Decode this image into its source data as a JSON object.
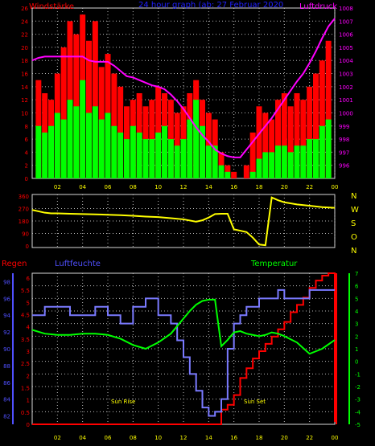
{
  "header": {
    "left_label": "Windstärke",
    "center_label": "24 hour graph (ab: 27 Februar 2020",
    "right_label": "Luftdruck"
  },
  "middle": {
    "compass_labels": [
      "N",
      "W",
      "S",
      "O",
      "N"
    ]
  },
  "bottom": {
    "left_label": "Regen",
    "humidity_label": "Luftfeuchte",
    "temp_label": "Temperatur",
    "sunrise_label": "Sun Rise",
    "sunset_label": "Sun Set"
  },
  "colors": {
    "wind_gust": "#ff0000",
    "wind_avg": "#00ff00",
    "pressure": "#ff00ff",
    "direction": "#ffff00",
    "humidity": "#7a7aff",
    "temperature": "#00ff00",
    "rain": "#ff0000",
    "axis_wind": "#ff0000",
    "axis_pressure": "#ff00ff",
    "axis_rain": "#ff0000",
    "axis_humidity": "#5050ff",
    "axis_temp": "#00ff00"
  },
  "chart_data": [
    {
      "type": "bar",
      "panel": "wind-pressure",
      "x_tick_labels": [
        "02",
        "04",
        "06",
        "08",
        "10",
        "12",
        "14",
        "16",
        "18",
        "20",
        "22",
        "00"
      ],
      "x_range_hours": [
        0,
        24
      ],
      "ylim_left": [
        0,
        26
      ],
      "left_tick_labels": [
        "0",
        "2",
        "4",
        "6",
        "8",
        "10",
        "12",
        "14",
        "16",
        "18",
        "20",
        "22",
        "24",
        "26"
      ],
      "ylim_right": [
        995,
        1008
      ],
      "right_tick_labels": [
        "996",
        "997",
        "998",
        "999",
        "1000",
        "1001",
        "1002",
        "1003",
        "1004",
        "1005",
        "1006",
        "1007",
        "1008"
      ],
      "grid": true,
      "series": [
        {
          "name": "Windstärke",
          "kind": "gust-bars",
          "x": [
            0.5,
            1,
            1.5,
            2,
            2.5,
            3,
            3.5,
            4,
            4.5,
            5,
            5.5,
            6,
            6.5,
            7,
            7.5,
            8,
            8.5,
            9,
            9.5,
            10,
            10.5,
            11,
            11.5,
            12,
            12.5,
            13,
            13.5,
            14,
            14.5,
            15,
            15.5,
            16,
            16.5,
            17,
            17.5,
            18,
            18.5,
            19,
            19.5,
            20,
            20.5,
            21,
            21.5,
            22,
            22.5,
            23,
            23.5
          ],
          "values": [
            15,
            13,
            12,
            16,
            20,
            24,
            22,
            25,
            21,
            24,
            17,
            19,
            16,
            14,
            11,
            12,
            13,
            11,
            12,
            14,
            13,
            12,
            10,
            11,
            13,
            15,
            12,
            10,
            9,
            4,
            2,
            1,
            0,
            2,
            7,
            11,
            10,
            9,
            12,
            13,
            11,
            13,
            12,
            14,
            16,
            18,
            21
          ]
        },
        {
          "name": "",
          "kind": "average-bars",
          "x": [
            0.5,
            1,
            1.5,
            2,
            2.5,
            3,
            3.5,
            4,
            4.5,
            5,
            5.5,
            6,
            6.5,
            7,
            7.5,
            8,
            8.5,
            9,
            9.5,
            10,
            10.5,
            11,
            11.5,
            12,
            12.5,
            13,
            13.5,
            14,
            14.5,
            15,
            15.5,
            16,
            16.5,
            17,
            17.5,
            18,
            18.5,
            19,
            19.5,
            20,
            20.5,
            21,
            21.5,
            22,
            22.5,
            23,
            23.5
          ],
          "values": [
            8,
            7,
            8,
            10,
            9,
            12,
            11,
            15,
            10,
            11,
            9,
            10,
            8,
            7,
            6,
            8,
            7,
            6,
            6,
            7,
            8,
            6,
            5,
            6,
            9,
            12,
            8,
            5,
            5,
            2,
            1,
            0,
            0,
            0,
            1,
            3,
            4,
            4,
            5,
            5,
            4,
            5,
            5,
            6,
            6,
            8,
            9
          ]
        },
        {
          "name": "Luftdruck",
          "kind": "line",
          "axis": "right",
          "x": [
            0,
            0.5,
            1,
            2,
            3,
            4,
            4.5,
            5,
            5.5,
            6,
            6.5,
            7,
            7.5,
            8,
            8.5,
            9,
            9.5,
            10,
            10.5,
            11,
            11.5,
            12,
            12.5,
            13,
            13.5,
            14,
            14.5,
            15,
            15.5,
            16,
            16.5,
            17,
            17.5,
            18,
            18.5,
            19,
            19.5,
            20,
            20.5,
            21,
            21.5,
            22,
            22.5,
            23,
            23.5,
            24
          ],
          "values": [
            1004.0,
            1004.2,
            1004.3,
            1004.3,
            1004.3,
            1004.3,
            1004.0,
            1003.9,
            1003.9,
            1003.9,
            1003.6,
            1003.2,
            1002.8,
            1002.7,
            1002.5,
            1002.3,
            1002.1,
            1002.0,
            1001.8,
            1001.4,
            1000.9,
            1000.3,
            999.6,
            998.9,
            998.3,
            997.8,
            997.2,
            996.9,
            996.7,
            996.6,
            996.6,
            997.2,
            997.8,
            998.4,
            999.0,
            999.6,
            1000.3,
            1001.0,
            1001.7,
            1002.4,
            1003.0,
            1003.8,
            1004.7,
            1005.7,
            1006.6,
            1007.2
          ]
        }
      ]
    },
    {
      "type": "line",
      "panel": "wind-direction",
      "x_range_hours": [
        0,
        24
      ],
      "ylim": [
        0,
        360
      ],
      "tick_labels": [
        "0",
        "90",
        "180",
        "270",
        "360"
      ],
      "grid": true,
      "series": [
        {
          "name": "",
          "x": [
            0,
            0.5,
            1,
            1.5,
            2,
            3,
            4,
            5,
            6,
            7,
            8,
            9,
            10,
            11,
            12,
            13,
            13.5,
            14,
            14.5,
            15,
            15.5,
            16,
            16.5,
            17,
            17.5,
            18,
            18.5,
            19,
            19.5,
            20,
            21,
            22,
            23,
            24
          ],
          "values": [
            260,
            250,
            240,
            235,
            235,
            232,
            230,
            228,
            225,
            222,
            218,
            212,
            208,
            200,
            192,
            175,
            185,
            205,
            230,
            232,
            232,
            120,
            110,
            100,
            60,
            10,
            5,
            350,
            330,
            315,
            300,
            290,
            280,
            275
          ]
        }
      ]
    },
    {
      "type": "line",
      "panel": "rain-humidity-temperature",
      "x_tick_labels": [
        "02",
        "04",
        "06",
        "08",
        "10",
        "12",
        "14",
        "16",
        "18",
        "20",
        "22",
        "00"
      ],
      "x_range_hours": [
        0,
        24
      ],
      "grid": true,
      "rain_ylim": [
        0,
        6.2
      ],
      "rain_tick_labels": [
        "0",
        "0.5",
        "1",
        "1.5",
        "2",
        "2.5",
        "3",
        "3.5",
        "4",
        "4.5",
        "5",
        "5.5",
        "6"
      ],
      "humidity_ylim": [
        81,
        99
      ],
      "humidity_tick_labels": [
        "82",
        "84",
        "86",
        "88",
        "90",
        "92",
        "94",
        "96",
        "98"
      ],
      "temp_ylim": [
        -5,
        7
      ],
      "temp_tick_labels": [
        "-5",
        "-4",
        "-3",
        "-2",
        "-1",
        "0",
        "1",
        "2",
        "3",
        "4",
        "5",
        "6",
        "7"
      ],
      "series": [
        {
          "name": "Regen",
          "axis": "rain",
          "x": [
            0,
            14,
            14.5,
            15,
            15.5,
            16,
            16.5,
            17,
            17.5,
            18,
            18.5,
            19,
            19.5,
            20,
            20.5,
            21,
            21.5,
            22,
            22.5,
            23,
            23.5,
            24
          ],
          "values": [
            0,
            0,
            0,
            0.6,
            0.8,
            1.2,
            1.9,
            2.3,
            2.7,
            3.0,
            3.3,
            3.6,
            3.9,
            4.2,
            4.6,
            4.9,
            5.2,
            5.6,
            5.9,
            6.1,
            6.2,
            0.1
          ]
        },
        {
          "name": "Luftfeuchte",
          "axis": "humidity",
          "x": [
            0,
            1,
            2,
            3,
            4,
            5,
            6,
            7,
            8,
            9,
            10,
            11,
            11.5,
            12,
            12.5,
            13,
            13.5,
            14,
            14.5,
            15,
            15.5,
            16,
            16.5,
            17,
            17.5,
            18,
            18.5,
            19,
            19.5,
            20,
            21,
            22,
            23,
            24
          ],
          "values": [
            94,
            95,
            95,
            94,
            94,
            95,
            94,
            93,
            95,
            96,
            94,
            93,
            91,
            89,
            87,
            85,
            83,
            82,
            82.5,
            84,
            90,
            93,
            94,
            95,
            95,
            96,
            96,
            96,
            97,
            96,
            96,
            97,
            97,
            97
          ]
        },
        {
          "name": "Temperatur",
          "axis": "temp",
          "x": [
            0,
            1,
            2,
            3,
            4,
            5,
            6,
            7,
            8,
            9,
            10,
            11,
            11.5,
            12,
            12.5,
            13,
            13.5,
            14,
            14.5,
            15,
            15.5,
            16,
            16.5,
            17,
            17.5,
            18,
            18.5,
            19,
            19.5,
            20,
            21,
            22,
            23,
            24
          ],
          "values": [
            2.5,
            2.2,
            2.1,
            2.1,
            2.2,
            2.2,
            2.1,
            1.8,
            1.3,
            1.0,
            1.5,
            2.2,
            2.8,
            3.4,
            4.0,
            4.5,
            4.8,
            4.9,
            4.9,
            1.2,
            1.7,
            2.3,
            2.4,
            2.2,
            2.1,
            2.0,
            2.1,
            2.3,
            2.2,
            2.0,
            1.5,
            0.6,
            1.0,
            1.7
          ]
        }
      ]
    }
  ]
}
